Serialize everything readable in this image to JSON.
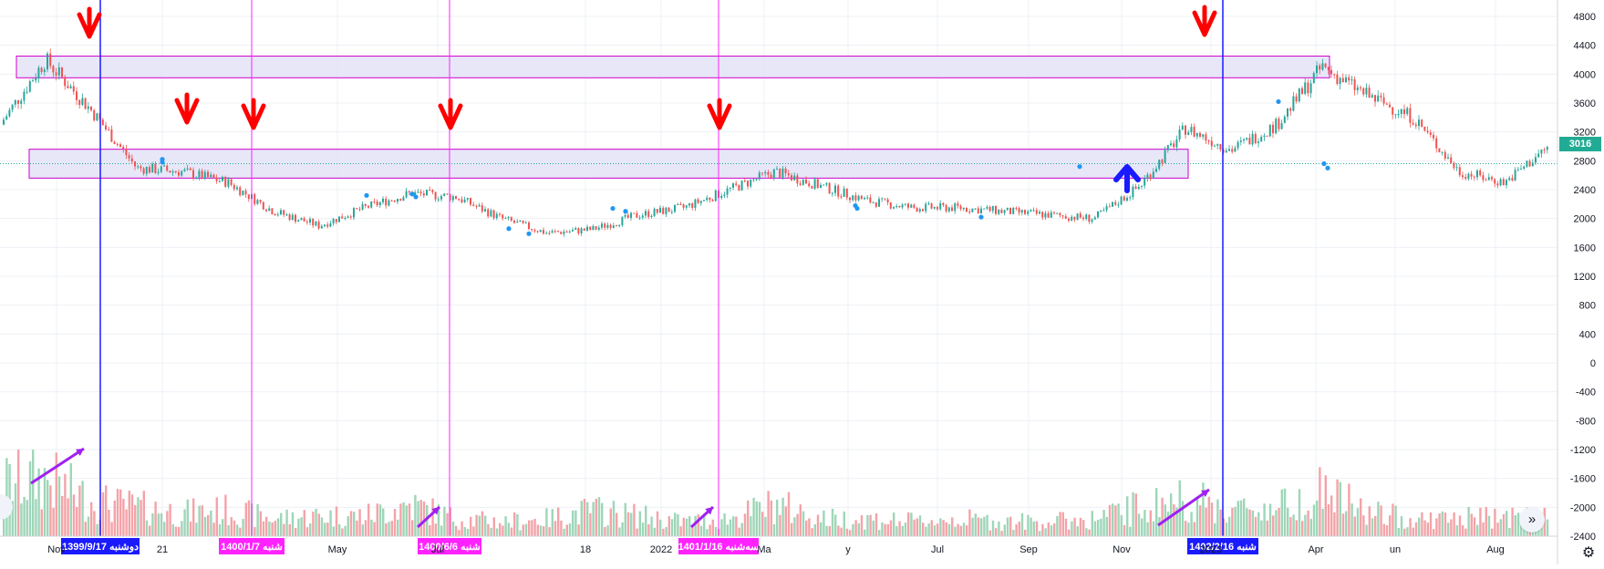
{
  "price_axis": {
    "labels": [
      "4800",
      "4400",
      "4000",
      "3600",
      "3200",
      "2800",
      "2400",
      "2000",
      "1600",
      "1200",
      "800",
      "400",
      "0",
      "-400",
      "-800",
      "-1200",
      "-1600",
      "-2000",
      "-2400"
    ],
    "current_price": "3016"
  },
  "time_axis": {
    "labels": [
      "Nov",
      "21",
      "May",
      "Jul",
      "18",
      "2022",
      "Ma",
      "y",
      "Jul",
      "Sep",
      "Nov",
      "2023",
      "Apr",
      "un",
      "Aug"
    ]
  },
  "vertical_markers": [
    {
      "label": "دوشنبه 1399/9/17",
      "color": "#1a1aff"
    },
    {
      "label": "شنبه 1400/1/7",
      "color": "#ff22ff"
    },
    {
      "label": "شنبه 1400/6/6",
      "color": "#ff22ff"
    },
    {
      "label": "سه‌شنبه 1401/1/16",
      "color": "#ff22ff"
    },
    {
      "label": "شنبه 1402/2/16",
      "color": "#1a1aff"
    }
  ],
  "zones": [
    {
      "name": "upper-resistance-zone",
      "from": 3950,
      "to": 4250
    },
    {
      "name": "middle-support-zone",
      "from": 2560,
      "to": 2960
    }
  ],
  "chart_data": {
    "type": "candlestick-with-volume",
    "dates": [
      "2020-11",
      "2020-12",
      "2021-01",
      "2021-02",
      "2021-03",
      "2021-04",
      "2021-05",
      "2021-06",
      "2021-07",
      "2021-08",
      "2021-09",
      "2021-10",
      "2021-11",
      "2021-12",
      "2022-01",
      "2022-02",
      "2022-03",
      "2022-04",
      "2022-05",
      "2022-06",
      "2022-07",
      "2022-08",
      "2022-09",
      "2022-10",
      "2022-11",
      "2022-12",
      "2023-01",
      "2023-02",
      "2023-03",
      "2023-04",
      "2023-05",
      "2023-06",
      "2023-07",
      "2023-08",
      "2023-09"
    ],
    "close": [
      3300,
      4200,
      3500,
      2700,
      2650,
      2500,
      2100,
      1900,
      2150,
      2350,
      2300,
      2000,
      1800,
      1850,
      2050,
      2150,
      2400,
      2650,
      2450,
      2250,
      2150,
      2150,
      2100,
      2050,
      2000,
      2450,
      3250,
      2950,
      3300,
      4100,
      3700,
      3400,
      2650,
      2500,
      3016
    ],
    "volume_activity": [
      0.9,
      1.0,
      0.6,
      0.5,
      0.4,
      0.45,
      0.3,
      0.35,
      0.35,
      0.55,
      0.3,
      0.25,
      0.3,
      0.45,
      0.35,
      0.25,
      0.3,
      0.55,
      0.3,
      0.3,
      0.25,
      0.3,
      0.25,
      0.25,
      0.3,
      0.5,
      0.65,
      0.45,
      0.5,
      0.8,
      0.4,
      0.3,
      0.3,
      0.35,
      0.3
    ],
    "price_range": [
      -2400,
      4800
    ],
    "grid": true,
    "last_price": 3016
  },
  "colors": {
    "up": "#26a69a",
    "down": "#ef5350",
    "volume_up": "#9ed6b8",
    "volume_down": "#f4a3a8",
    "zone_fill": "#e3e3f7",
    "zone_stroke": "#cc00cc",
    "arrow_down": "#ff0000",
    "arrow_up": "#1a1aff",
    "trend_arrow": "#a020f0",
    "dot": "#2196f3",
    "price_line": "#22ab94"
  },
  "icons": {
    "settings": "gear-icon",
    "scroll": "double-chevron-right-icon"
  }
}
